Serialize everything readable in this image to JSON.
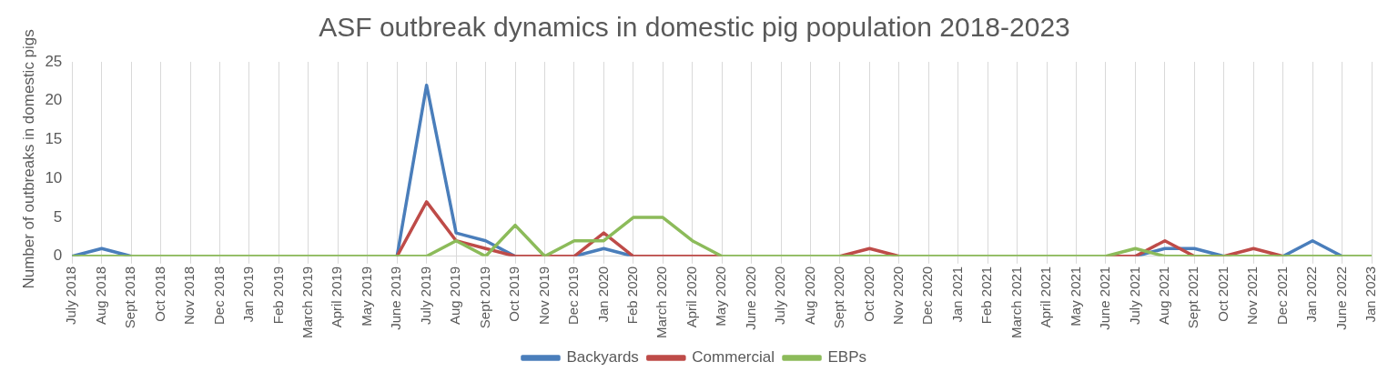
{
  "chart_data": {
    "type": "line",
    "title": "ASF outbreak dynamics in domestic pig population 2018-2023",
    "ylabel": "Number of outbreaks in domestic pigs",
    "categories": [
      "July 2018",
      "Aug 2018",
      "Sept 2018",
      "Oct 2018",
      "Nov 2018",
      "Dec 2018",
      "Jan 2019",
      "Feb 2019",
      "March 2019",
      "April 2019",
      "May 2019",
      "June 2019",
      "July 2019",
      "Aug 2019",
      "Sept 2019",
      "Oct 2019",
      "Nov 2019",
      "Dec 2019",
      "Jan 2020",
      "Feb 2020",
      "March 2020",
      "April 2020",
      "May 2020",
      "June 2020",
      "July 2020",
      "Aug 2020",
      "Sept 2020",
      "Oct 2020",
      "Nov 2020",
      "Dec 2020",
      "Jan 2021",
      "Feb 2021",
      "March 2021",
      "April 2021",
      "May 2021",
      "June 2021",
      "July 2021",
      "Aug 2021",
      "Sept 2021",
      "Oct 2021",
      "Nov 2021",
      "Dec 2021",
      "Jan 2022",
      "June 2022",
      "Jan 2023"
    ],
    "series": [
      {
        "name": "Backyards",
        "color": "#4a7ebb",
        "values": [
          0,
          1,
          0,
          null,
          null,
          null,
          null,
          null,
          null,
          null,
          null,
          0,
          22,
          3,
          2,
          0,
          null,
          0,
          1,
          0,
          null,
          null,
          null,
          null,
          null,
          null,
          null,
          null,
          null,
          null,
          null,
          null,
          null,
          null,
          null,
          null,
          0,
          1,
          1,
          0,
          null,
          0,
          2,
          0,
          null
        ]
      },
      {
        "name": "Commercial",
        "color": "#be4b48",
        "values": [
          null,
          null,
          null,
          null,
          null,
          null,
          null,
          null,
          null,
          null,
          null,
          0,
          7,
          2,
          1,
          0,
          0,
          0,
          3,
          0,
          0,
          0,
          0,
          null,
          null,
          null,
          0,
          1,
          0,
          null,
          null,
          null,
          null,
          null,
          null,
          0,
          0,
          2,
          0,
          0,
          1,
          0,
          null,
          null,
          null
        ]
      },
      {
        "name": "EBPs",
        "color": "#8cbb5a",
        "values": [
          0,
          0,
          0,
          0,
          0,
          0,
          0,
          0,
          0,
          0,
          0,
          0,
          0,
          2,
          0,
          4,
          0,
          2,
          2,
          5,
          5,
          2,
          0,
          0,
          0,
          0,
          0,
          0,
          0,
          0,
          0,
          0,
          0,
          0,
          0,
          0,
          1,
          0,
          0,
          0,
          0,
          0,
          0,
          0,
          0
        ]
      }
    ],
    "ylim": [
      0,
      25
    ],
    "yticks": [
      0,
      5,
      10,
      15,
      20,
      25
    ],
    "grid": "x",
    "legend": "bottom",
    "marker": "none",
    "line_style": "solid"
  }
}
